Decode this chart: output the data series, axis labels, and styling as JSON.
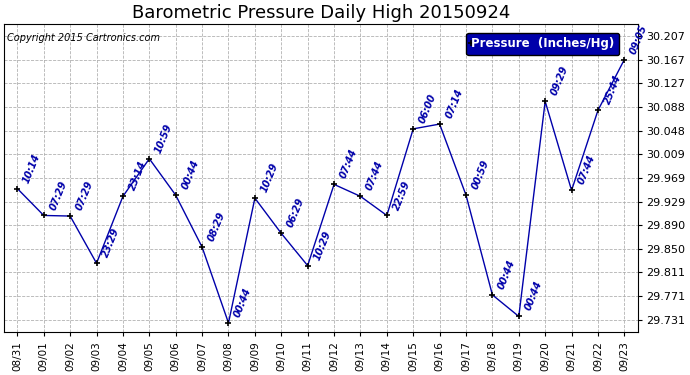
{
  "title": "Barometric Pressure Daily High 20150924",
  "copyright": "Copyright 2015 Cartronics.com",
  "legend_label": "Pressure  (Inches/Hg)",
  "x_labels": [
    "08/31",
    "09/01",
    "09/02",
    "09/03",
    "09/04",
    "09/05",
    "09/06",
    "09/07",
    "09/08",
    "09/09",
    "09/10",
    "09/11",
    "09/12",
    "09/13",
    "09/14",
    "09/15",
    "09/16",
    "09/17",
    "09/18",
    "09/19",
    "09/20",
    "09/21",
    "09/22",
    "09/23"
  ],
  "y_values": [
    29.951,
    29.906,
    29.905,
    29.826,
    29.938,
    30.001,
    29.94,
    29.853,
    29.726,
    29.935,
    29.876,
    29.822,
    29.958,
    29.938,
    29.906,
    30.051,
    30.059,
    29.94,
    29.773,
    29.737,
    30.097,
    29.948,
    30.082,
    30.167
  ],
  "annotations": [
    "10:14",
    "07:29",
    "07:29",
    "23:29",
    "23:14",
    "10:59",
    "00:44",
    "08:29",
    "00:44",
    "10:29",
    "06:29",
    "10:29",
    "07:44",
    "07:44",
    "22:59",
    "06:00",
    "07:14",
    "00:59",
    "00:44",
    "00:44",
    "09:29",
    "07:44",
    "25:44",
    "09:05"
  ],
  "line_color": "#0000AA",
  "marker_color": "#000000",
  "bg_color": "#ffffff",
  "grid_color": "#aaaaaa",
  "ylim_min": 29.711,
  "ylim_max": 30.227,
  "yticks": [
    29.731,
    29.771,
    29.811,
    29.85,
    29.89,
    29.929,
    29.969,
    30.009,
    30.048,
    30.088,
    30.127,
    30.167,
    30.207
  ],
  "title_fontsize": 13,
  "annotation_fontsize": 7,
  "legend_fontsize": 8.5
}
